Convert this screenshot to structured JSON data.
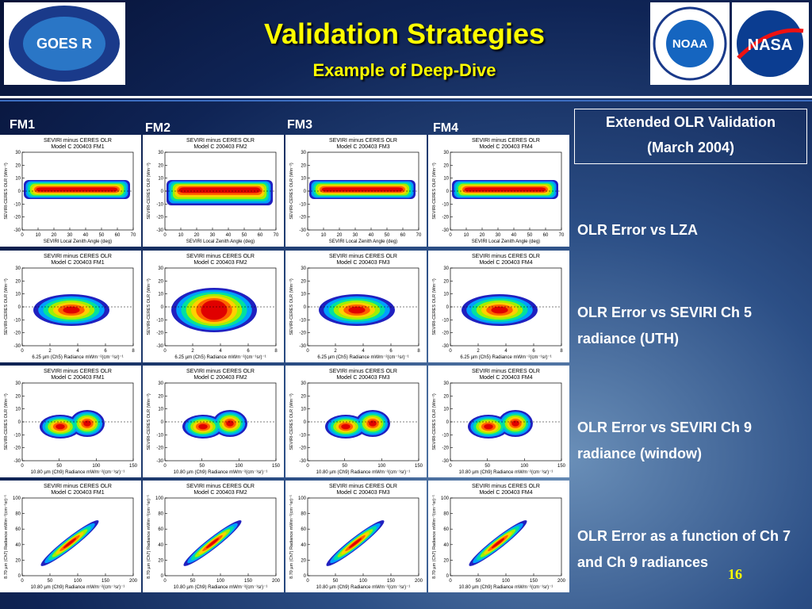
{
  "header": {
    "title": "Validation Strategies",
    "subtitle": "Example of Deep-Dive"
  },
  "logos": {
    "goes": "GOES R",
    "noaa": "NOAA",
    "nasa": "NASA"
  },
  "columns": [
    "FM1",
    "FM2",
    "FM3",
    "FM4"
  ],
  "panels": {
    "title": "SEVIRI minus CERES OLR",
    "models": [
      "Model C 200403 FM1",
      "Model C 200403 FM2",
      "Model C 200403 FM3",
      "Model C 200403 FM4"
    ]
  },
  "rows": [
    {
      "xlabel": "SEVIRI Local Zenith Angle (deg)",
      "ylabel": "SEVIRI-CERES OLR (Wm⁻²)",
      "xticks": [
        "0",
        "10",
        "20",
        "30",
        "40",
        "50",
        "60",
        "70"
      ],
      "yticks": [
        "30",
        "20",
        "10",
        "0",
        "-10",
        "-20",
        "-30"
      ]
    },
    {
      "xlabel": "6.25 µm (Ch5) Radiance mWm⁻²(cm⁻¹sr)⁻¹",
      "ylabel": "SEVIRI-CERES OLR (Wm⁻²)",
      "xticks": [
        "0",
        "2",
        "4",
        "6",
        "8"
      ],
      "yticks": [
        "30",
        "20",
        "10",
        "0",
        "-10",
        "-20",
        "-30"
      ]
    },
    {
      "xlabel": "10.80 µm (Ch9) Radiance mWm⁻²(cm⁻¹sr)⁻¹",
      "ylabel": "SEVIRI-CERES OLR (Wm⁻²)",
      "xticks": [
        "0",
        "50",
        "100",
        "150"
      ],
      "yticks": [
        "30",
        "20",
        "10",
        "0",
        "-10",
        "-20",
        "-30"
      ]
    },
    {
      "xlabel": "10.80 µm (Ch9) Radiance mWm⁻²(cm⁻¹sr)⁻¹",
      "ylabel": "8.70 µm (Ch7) Radiance mWm⁻²(cm⁻¹sr)⁻¹",
      "xticks": [
        "0",
        "50",
        "100",
        "150",
        "200"
      ],
      "yticks": [
        "100",
        "80",
        "60",
        "40",
        "20",
        "0"
      ]
    }
  ],
  "sidebar": {
    "box": [
      "Extended OLR Validation",
      "(March 2004)"
    ],
    "notes": [
      "OLR Error vs LZA",
      "OLR Error vs SEVIRI Ch 5 radiance (UTH)",
      "OLR Error vs SEVIRI Ch 9 radiance (window)",
      "OLR Error as a function of Ch 7 and Ch 9 radiances"
    ]
  },
  "page_number": "16"
}
